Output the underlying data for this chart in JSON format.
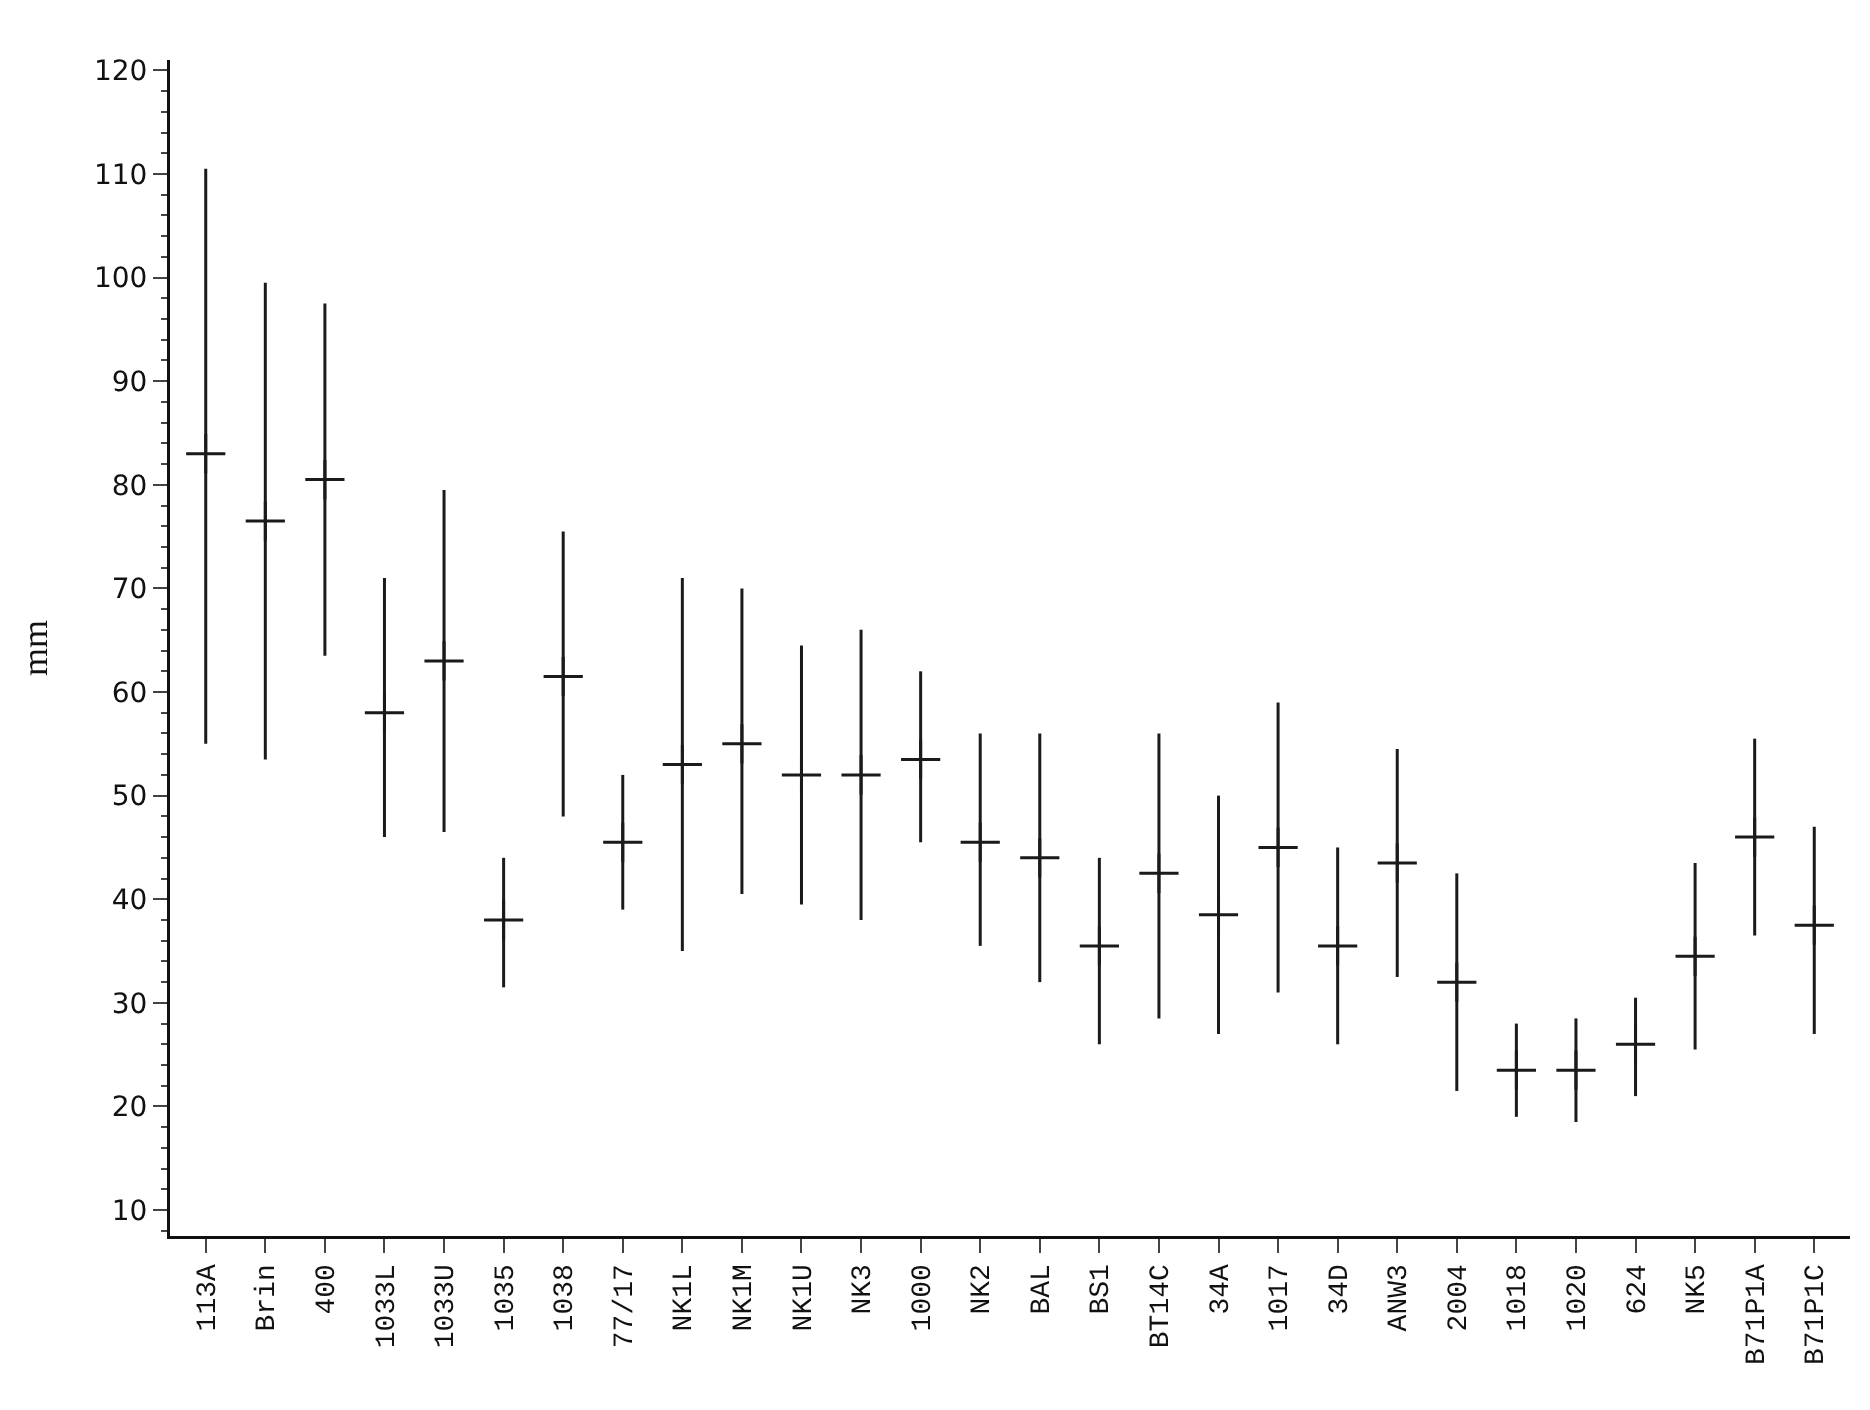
{
  "chart_data": {
    "type": "scatter",
    "ylabel": "mm",
    "categories": [
      "113A",
      "Brin",
      "400",
      "1033L",
      "1033U",
      "1035",
      "1038",
      "77/17",
      "NK1L",
      "NK1M",
      "NK1U",
      "NK3",
      "1000",
      "NK2",
      "BAL",
      "BS1",
      "BT14C",
      "34A",
      "1017",
      "34D",
      "ANW3",
      "2004",
      "1018",
      "1020",
      "624",
      "NK5",
      "B71P1A",
      "B71P1C"
    ],
    "values": [
      83,
      76.5,
      80.5,
      58,
      63,
      38,
      61.5,
      45.5,
      53,
      55,
      52,
      52,
      53.5,
      45.5,
      44,
      35.5,
      42.5,
      38.5,
      45,
      35.5,
      43.5,
      32,
      23.5,
      23.5,
      26,
      34.5,
      46,
      37.5
    ],
    "errors": [
      [
        55,
        110.5
      ],
      [
        53.5,
        99.5
      ],
      [
        63.5,
        97.5
      ],
      [
        46,
        71
      ],
      [
        46.5,
        79.5
      ],
      [
        31.5,
        44
      ],
      [
        48,
        75.5
      ],
      [
        39,
        52
      ],
      [
        35,
        71
      ],
      [
        40.5,
        70
      ],
      [
        39.5,
        64.5
      ],
      [
        38,
        66
      ],
      [
        45.5,
        62
      ],
      [
        35.5,
        56
      ],
      [
        32,
        56
      ],
      [
        26,
        44
      ],
      [
        28.5,
        56
      ],
      [
        27,
        50
      ],
      [
        31,
        59
      ],
      [
        26,
        45
      ],
      [
        32.5,
        54.5
      ],
      [
        21.5,
        42.5
      ],
      [
        19,
        28
      ],
      [
        18.5,
        28.5
      ],
      [
        21,
        30.5
      ],
      [
        25.5,
        43.5
      ],
      [
        36.5,
        55.5
      ],
      [
        27,
        47
      ]
    ],
    "color": "#1a1a1a",
    "ylim": [
      7.5,
      121
    ],
    "yticks": [
      10,
      20,
      30,
      40,
      50,
      60,
      70,
      80,
      90,
      100,
      110,
      120
    ],
    "grid": false,
    "marker": "cross"
  }
}
